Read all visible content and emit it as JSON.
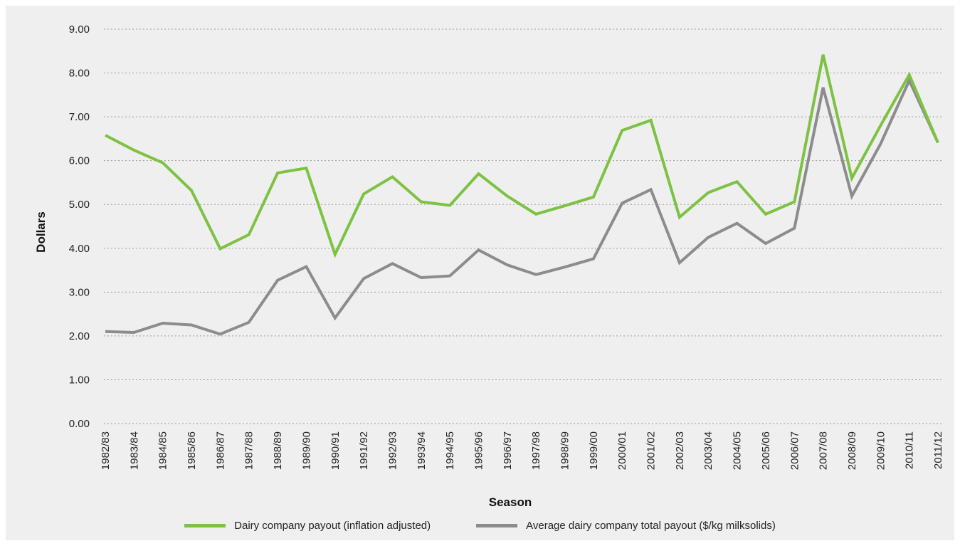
{
  "chart_data": {
    "type": "line",
    "xlabel": "Season",
    "ylabel": "Dollars",
    "ylim": [
      0,
      9
    ],
    "y_ticks": [
      "0.00",
      "1.00",
      "2.00",
      "3.00",
      "4.00",
      "5.00",
      "6.00",
      "7.00",
      "8.00",
      "9.00"
    ],
    "grid": "horizontal dotted",
    "legend_position": "bottom-center",
    "categories": [
      "1982/83",
      "1983/84",
      "1984/85",
      "1985/86",
      "1986/87",
      "1987/88",
      "1988/89",
      "1989/90",
      "1990/91",
      "1991/92",
      "1992/93",
      "1993/94",
      "1994/95",
      "1995/96",
      "1996/97",
      "1997/98",
      "1998/99",
      "1999/00",
      "2000/01",
      "2001/02",
      "2002/03",
      "2003/04",
      "2004/05",
      "2005/06",
      "2006/07",
      "2007/08",
      "2008/09",
      "2009/10",
      "2010/11",
      "2011/12"
    ],
    "series": [
      {
        "name": "Dairy company payout (inflation adjusted)",
        "color": "#7dc242",
        "values": [
          6.58,
          6.24,
          5.95,
          5.32,
          3.99,
          4.31,
          5.72,
          5.83,
          3.86,
          5.24,
          5.63,
          5.06,
          4.98,
          5.7,
          5.19,
          4.78,
          4.97,
          5.17,
          6.69,
          6.92,
          4.71,
          5.27,
          5.52,
          4.78,
          5.06,
          8.42,
          5.6,
          6.8,
          7.96,
          6.41
        ]
      },
      {
        "name": "Average dairy company total payout ($/kg milksolids)",
        "color": "#8c8c8e",
        "values": [
          2.1,
          2.08,
          2.29,
          2.25,
          2.04,
          2.31,
          3.27,
          3.58,
          2.41,
          3.31,
          3.65,
          3.33,
          3.37,
          3.96,
          3.62,
          3.4,
          3.57,
          3.76,
          5.03,
          5.34,
          3.67,
          4.25,
          4.57,
          4.11,
          4.46,
          7.67,
          5.19,
          6.38,
          7.83,
          6.41
        ]
      }
    ]
  }
}
